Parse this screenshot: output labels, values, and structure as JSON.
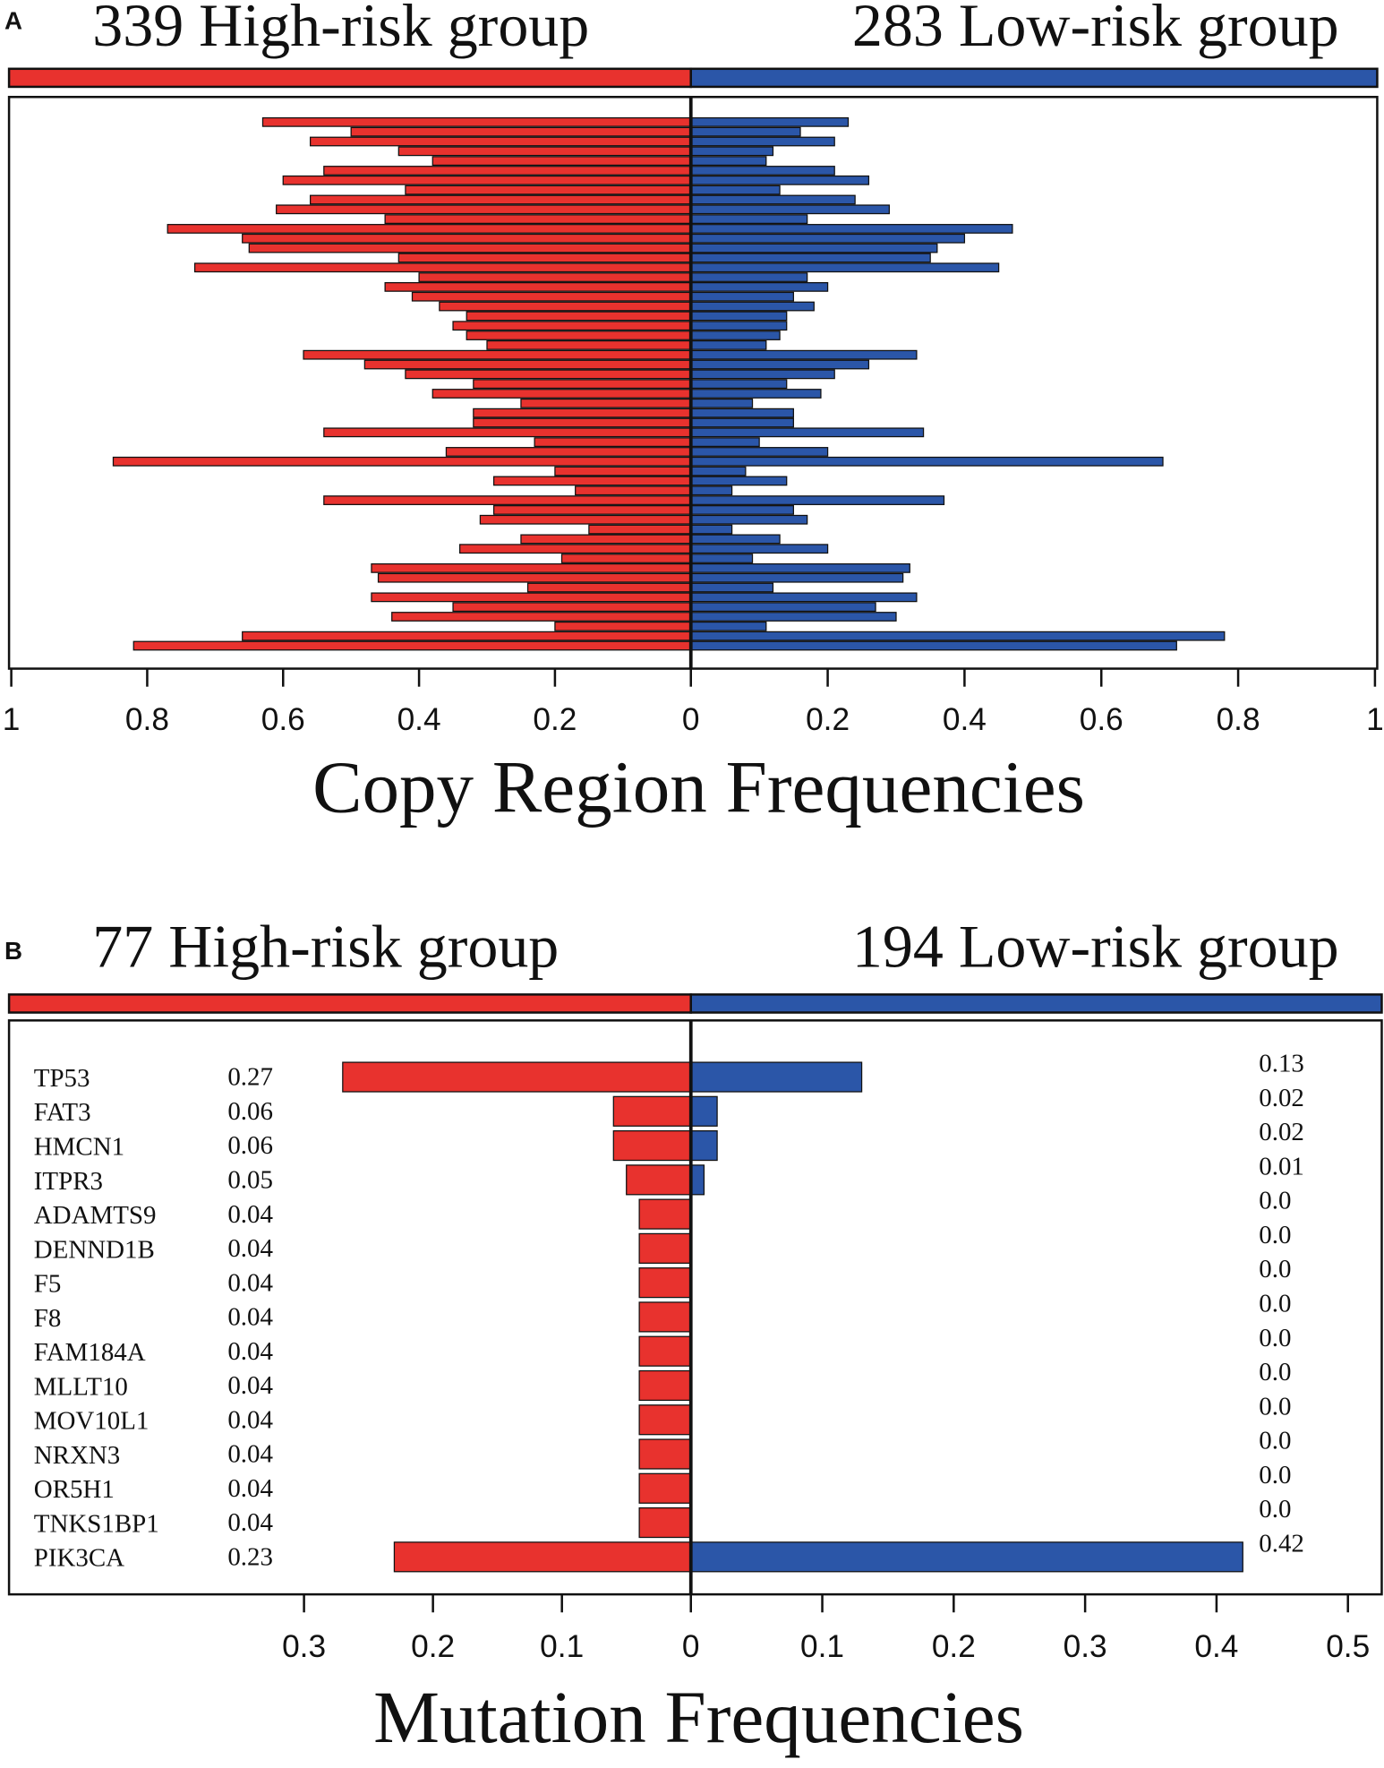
{
  "chart_data": [
    {
      "type": "diverging_bar",
      "panel_label": "A",
      "xlabel": "Copy Region Frequencies",
      "series": [
        {
          "name": "339 High-risk group",
          "color": "#e8322e",
          "side": "left",
          "xlim": [
            0,
            1
          ],
          "xticks": [
            1,
            0.8,
            0.6,
            0.4,
            0.2
          ],
          "values": [
            0.63,
            0.5,
            0.56,
            0.43,
            0.38,
            0.54,
            0.6,
            0.42,
            0.56,
            0.61,
            0.45,
            0.77,
            0.66,
            0.65,
            0.43,
            0.73,
            0.4,
            0.45,
            0.41,
            0.37,
            0.33,
            0.35,
            0.33,
            0.3,
            0.57,
            0.48,
            0.42,
            0.32,
            0.38,
            0.25,
            0.32,
            0.32,
            0.54,
            0.23,
            0.36,
            0.85,
            0.2,
            0.29,
            0.17,
            0.54,
            0.29,
            0.31,
            0.15,
            0.25,
            0.34,
            0.19,
            0.47,
            0.46,
            0.24,
            0.47,
            0.35,
            0.44,
            0.2,
            0.66,
            0.82
          ]
        },
        {
          "name": "283 Low-risk group",
          "color": "#2b56a8",
          "side": "right",
          "xlim": [
            0,
            1
          ],
          "xticks": [
            0,
            0.2,
            0.4,
            0.6,
            0.8,
            1
          ],
          "values": [
            0.23,
            0.16,
            0.21,
            0.12,
            0.11,
            0.21,
            0.26,
            0.13,
            0.24,
            0.29,
            0.17,
            0.47,
            0.4,
            0.36,
            0.35,
            0.45,
            0.17,
            0.2,
            0.15,
            0.18,
            0.14,
            0.14,
            0.13,
            0.11,
            0.33,
            0.26,
            0.21,
            0.14,
            0.19,
            0.09,
            0.15,
            0.15,
            0.34,
            0.1,
            0.2,
            0.69,
            0.08,
            0.14,
            0.06,
            0.37,
            0.15,
            0.17,
            0.06,
            0.13,
            0.2,
            0.09,
            0.32,
            0.31,
            0.12,
            0.33,
            0.27,
            0.3,
            0.11,
            0.78,
            0.71
          ]
        }
      ]
    },
    {
      "type": "diverging_bar",
      "panel_label": "B",
      "xlabel": "Mutation Frequencies",
      "categories": [
        "TP53",
        "FAT3",
        "HMCN1",
        "ITPR3",
        "ADAMTS9",
        "DENND1B",
        "F5",
        "F8",
        "FAM184A",
        "MLLT10",
        "MOV10L1",
        "NRXN3",
        "OR5H1",
        "TNKS1BP1",
        "PIK3CA"
      ],
      "series": [
        {
          "name": "77 High-risk group",
          "color": "#e8322e",
          "side": "left",
          "xlim": [
            0,
            0.527
          ],
          "xticks": [
            0.3,
            0.2,
            0.1
          ],
          "values": [
            0.27,
            0.06,
            0.06,
            0.05,
            0.04,
            0.04,
            0.04,
            0.04,
            0.04,
            0.04,
            0.04,
            0.04,
            0.04,
            0.04,
            0.23
          ]
        },
        {
          "name": "194 Low-risk group",
          "color": "#2b56a8",
          "side": "right",
          "xlim": [
            0,
            0.524
          ],
          "xticks": [
            0,
            0.1,
            0.2,
            0.3,
            0.4,
            0.5
          ],
          "values": [
            0.13,
            0.02,
            0.02,
            0.01,
            0,
            0,
            0,
            0,
            0,
            0,
            0,
            0,
            0,
            0,
            0.42
          ],
          "value_labels": [
            "0.13",
            "0.02",
            "0.02",
            "0.01",
            "0.0",
            "0.0",
            "0.0",
            "0.0",
            "0.0",
            "0.0",
            "0.0",
            "0.0",
            "0.0",
            "0.0",
            "0.42"
          ]
        }
      ]
    }
  ]
}
